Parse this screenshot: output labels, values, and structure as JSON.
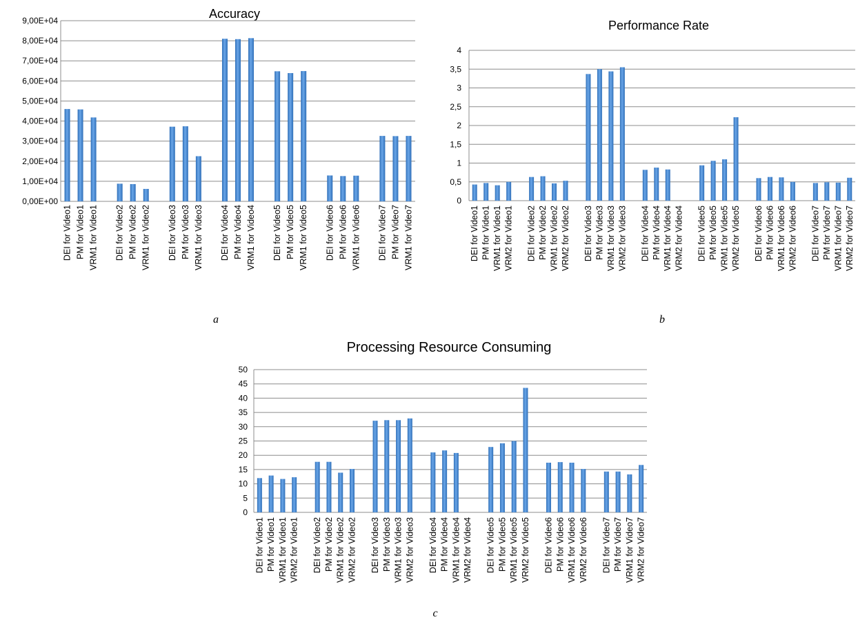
{
  "chart_data": [
    {
      "type": "bar",
      "title": "Accuracy",
      "panel": "a",
      "ylim": [
        0,
        90000
      ],
      "y_ticks": [
        "0,00E+00",
        "1,00E+04",
        "2,00E+04",
        "3,00E+04",
        "4,00E+04",
        "5,00E+04",
        "6,00E+04",
        "7,00E+04",
        "8,00E+04",
        "9,00E+04"
      ],
      "grid": true,
      "color": "#4a8fdc",
      "groups": [
        {
          "bars": [
            {
              "label": "DEI for Video1",
              "value": 46000
            },
            {
              "label": "PM for Video1",
              "value": 45800
            },
            {
              "label": "VRM1 for Video1",
              "value": 41800
            }
          ]
        },
        {
          "bars": [
            {
              "label": "DEI for Video2",
              "value": 8800
            },
            {
              "label": "PM for Video2",
              "value": 8600
            },
            {
              "label": "VRM1 for Video2",
              "value": 6200
            }
          ]
        },
        {
          "bars": [
            {
              "label": "DEI for Video3",
              "value": 37200
            },
            {
              "label": "PM for Video3",
              "value": 37400
            },
            {
              "label": "VRM1 for Video3",
              "value": 22500
            }
          ]
        },
        {
          "bars": [
            {
              "label": "DEI for Video4",
              "value": 81000
            },
            {
              "label": "PM for Video4",
              "value": 80800
            },
            {
              "label": "VRM1 for Video4",
              "value": 81300
            }
          ]
        },
        {
          "bars": [
            {
              "label": "DEI for Video5",
              "value": 64800
            },
            {
              "label": "PM for Video5",
              "value": 63900
            },
            {
              "label": "VRM1 for Video5",
              "value": 64900
            }
          ]
        },
        {
          "bars": [
            {
              "label": "DEI for Video6",
              "value": 12900
            },
            {
              "label": "PM for Video6",
              "value": 12600
            },
            {
              "label": "VRM1 for Video6",
              "value": 12800
            }
          ]
        },
        {
          "bars": [
            {
              "label": "DEI for Video7",
              "value": 32600
            },
            {
              "label": "PM for Video7",
              "value": 32500
            },
            {
              "label": "VRM1 for Video7",
              "value": 32600
            }
          ]
        }
      ]
    },
    {
      "type": "bar",
      "title": "Performance Rate",
      "panel": "b",
      "ylim": [
        0,
        4
      ],
      "y_ticks": [
        "0",
        "0,5",
        "1",
        "1,5",
        "2",
        "2,5",
        "3",
        "3,5",
        "4"
      ],
      "grid": true,
      "color": "#4a8fdc",
      "groups": [
        {
          "bars": [
            {
              "label": "DEI for Video1",
              "value": 0.43
            },
            {
              "label": "PM for Video1",
              "value": 0.47
            },
            {
              "label": "VRM1 for Video1",
              "value": 0.41
            },
            {
              "label": "VRM2 for Video1",
              "value": 0.5
            }
          ]
        },
        {
          "bars": [
            {
              "label": "DEI for Video2",
              "value": 0.63
            },
            {
              "label": "PM for Video2",
              "value": 0.65
            },
            {
              "label": "VRM1 for Video2",
              "value": 0.46
            },
            {
              "label": "VRM2 for Video2",
              "value": 0.53
            }
          ]
        },
        {
          "bars": [
            {
              "label": "DEI for Video3",
              "value": 3.37
            },
            {
              "label": "PM for Video3",
              "value": 3.5
            },
            {
              "label": "VRM1 for Video3",
              "value": 3.44
            },
            {
              "label": "VRM2 for Video3",
              "value": 3.55
            }
          ]
        },
        {
          "bars": [
            {
              "label": "DEI for Video4",
              "value": 0.82
            },
            {
              "label": "PM for Video4",
              "value": 0.88
            },
            {
              "label": "VRM1 for Video4",
              "value": 0.83
            },
            {
              "label": "VRM2 for Video4",
              "value": null
            }
          ]
        },
        {
          "bars": [
            {
              "label": "DEI for Video5",
              "value": 0.94
            },
            {
              "label": "PM for Video5",
              "value": 1.06
            },
            {
              "label": "VRM1 for Video5",
              "value": 1.1
            },
            {
              "label": "VRM2 for Video5",
              "value": 2.22
            }
          ]
        },
        {
          "bars": [
            {
              "label": "DEI for Video6",
              "value": 0.6
            },
            {
              "label": "PM for Video6",
              "value": 0.63
            },
            {
              "label": "VRM1 for Video6",
              "value": 0.62
            },
            {
              "label": "VRM2 for Video6",
              "value": 0.5
            }
          ]
        },
        {
          "bars": [
            {
              "label": "DEI for Video7",
              "value": 0.47
            },
            {
              "label": "PM for Video7",
              "value": 0.49
            },
            {
              "label": "VRM1 for Video7",
              "value": 0.48
            },
            {
              "label": "VRM2 for Video7",
              "value": 0.61
            }
          ]
        }
      ]
    },
    {
      "type": "bar",
      "title": "Processing Resource Consuming",
      "panel": "c",
      "ylim": [
        0,
        50
      ],
      "y_ticks": [
        "0",
        "5",
        "10",
        "15",
        "20",
        "25",
        "30",
        "35",
        "40",
        "45",
        "50"
      ],
      "grid": true,
      "color": "#4a8fdc",
      "groups": [
        {
          "bars": [
            {
              "label": "DEI for Video1",
              "value": 12
            },
            {
              "label": "PM for Video1",
              "value": 12.9
            },
            {
              "label": "VRM1 for Video1",
              "value": 11.7
            },
            {
              "label": "VRM2 for Video1",
              "value": 12.3
            }
          ]
        },
        {
          "bars": [
            {
              "label": "DEI for Video2",
              "value": 17.7
            },
            {
              "label": "PM for Video2",
              "value": 17.7
            },
            {
              "label": "VRM1 for Video2",
              "value": 13.9
            },
            {
              "label": "VRM2 for Video2",
              "value": 15.2
            }
          ]
        },
        {
          "bars": [
            {
              "label": "DEI for Video3",
              "value": 32.1
            },
            {
              "label": "PM for Video3",
              "value": 32.3
            },
            {
              "label": "VRM1 for Video3",
              "value": 32.3
            },
            {
              "label": "VRM2 for Video3",
              "value": 32.9
            }
          ]
        },
        {
          "bars": [
            {
              "label": "DEI for Video4",
              "value": 21
            },
            {
              "label": "PM for Video4",
              "value": 21.7
            },
            {
              "label": "VRM1 for Video4",
              "value": 20.8
            },
            {
              "label": "VRM2 for Video4",
              "value": null
            }
          ]
        },
        {
          "bars": [
            {
              "label": "DEI for Video5",
              "value": 22.9
            },
            {
              "label": "PM for Video5",
              "value": 24.2
            },
            {
              "label": "VRM1 for Video5",
              "value": 25
            },
            {
              "label": "VRM2 for Video5",
              "value": 43.6
            }
          ]
        },
        {
          "bars": [
            {
              "label": "DEI for Video6",
              "value": 17.4
            },
            {
              "label": "PM for Video6",
              "value": 17.6
            },
            {
              "label": "VRM1 for Video6",
              "value": 17.4
            },
            {
              "label": "VRM2 for Video6",
              "value": 15.2
            }
          ]
        },
        {
          "bars": [
            {
              "label": "DEI for Video7",
              "value": 14.3
            },
            {
              "label": "PM for Video7",
              "value": 14.3
            },
            {
              "label": "VRM1 for Video7",
              "value": 13.3
            },
            {
              "label": "VRM2 for Video7",
              "value": 16.6
            }
          ]
        }
      ]
    }
  ]
}
